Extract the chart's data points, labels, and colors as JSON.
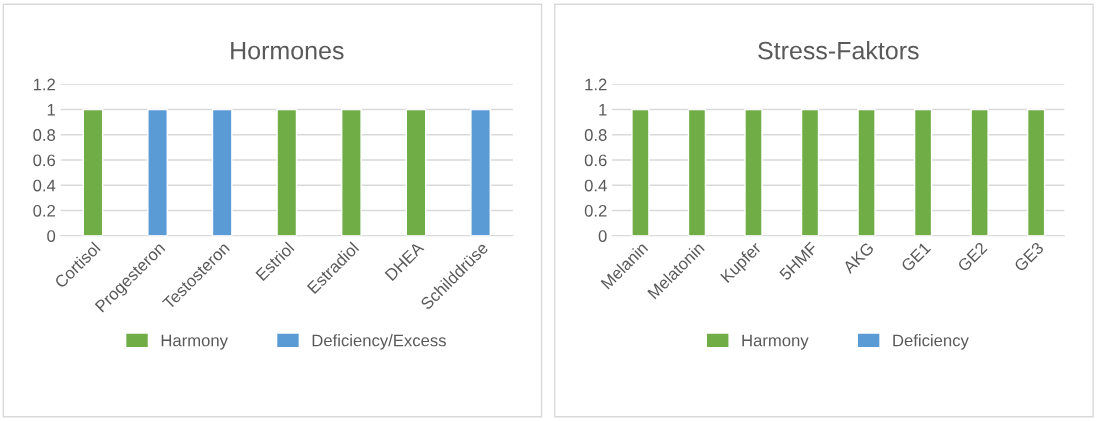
{
  "chart_data": [
    {
      "type": "bar",
      "title": "Hormones",
      "categories": [
        "Cortisol",
        "Progesteron",
        "Testosteron",
        "Estriol",
        "Estradiol",
        "DHEA",
        "Schilddrüse"
      ],
      "series": [
        {
          "name": "Harmony",
          "color": "#70ad47",
          "values": [
            1,
            null,
            null,
            1,
            1,
            1,
            null
          ]
        },
        {
          "name": "Deficiency/Excess",
          "color": "#5b9bd5",
          "values": [
            null,
            1,
            1,
            null,
            null,
            null,
            1
          ]
        }
      ],
      "ylim": [
        0,
        1.2
      ],
      "yticks": [
        0,
        0.2,
        0.4,
        0.6,
        0.8,
        1,
        1.2
      ],
      "grid": "y",
      "legend": "bottom"
    },
    {
      "type": "bar",
      "title": "Stress-Faktors",
      "categories": [
        "Melanin",
        "Melatonin",
        "Kupfer",
        "5HMF",
        "AKG",
        "GE1",
        "GE2",
        "GE3"
      ],
      "series": [
        {
          "name": "Harmony",
          "color": "#70ad47",
          "values": [
            1,
            1,
            1,
            1,
            1,
            1,
            1,
            1
          ]
        },
        {
          "name": "Deficiency",
          "color": "#5b9bd5",
          "values": [
            null,
            null,
            null,
            null,
            null,
            null,
            null,
            null
          ]
        }
      ],
      "ylim": [
        0,
        1.2
      ],
      "yticks": [
        0,
        0.2,
        0.4,
        0.6,
        0.8,
        1,
        1.2
      ],
      "grid": "y",
      "legend": "bottom"
    }
  ]
}
